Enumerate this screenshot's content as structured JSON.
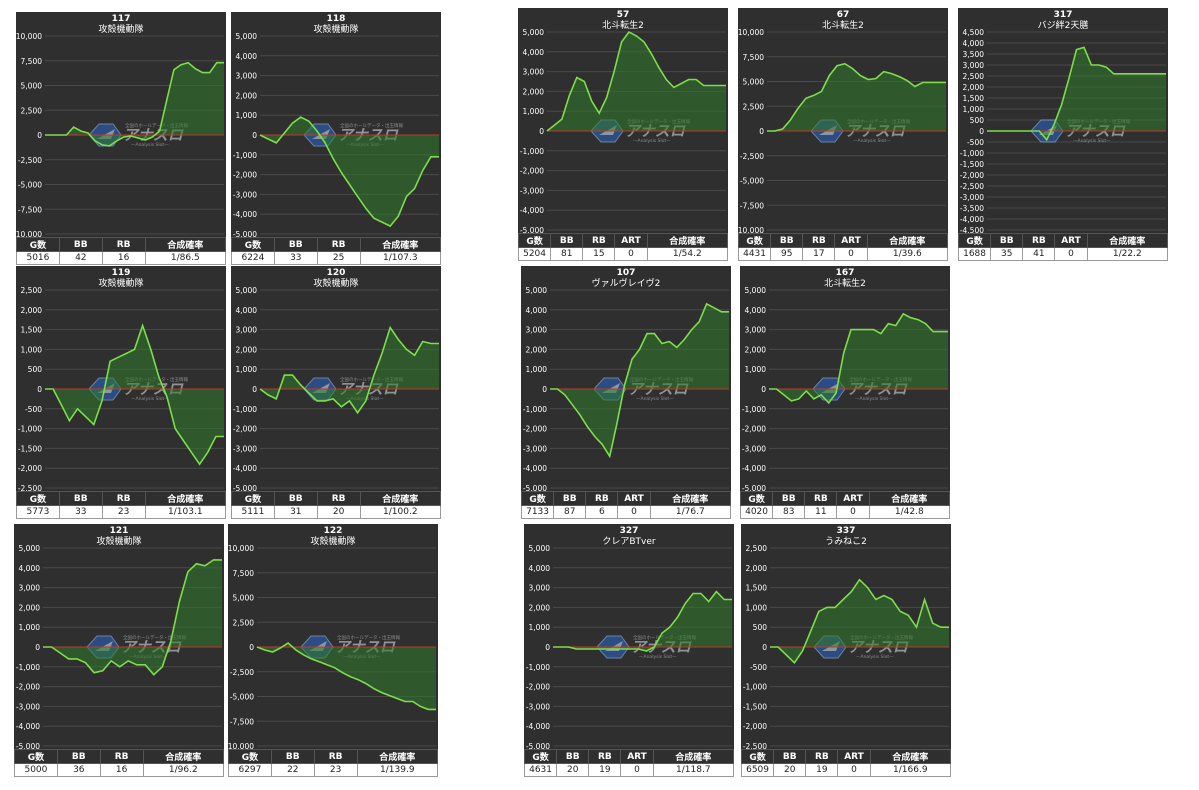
{
  "colors": {
    "background": "#2f2f2f",
    "line": "#7dde4a",
    "fill": "#2f7a2a",
    "zero": "#c0392b",
    "grid": "#4a4a4a",
    "text": "#ffffff"
  },
  "icons": {
    "watermark": "anaslo-logo-watermark"
  },
  "watermark": {
    "title": "アナスロ",
    "subtitle": "—Analysis Slot—",
    "caption": "全国のホールデータ・出玉情報"
  },
  "chart_data": [
    {
      "id": "117",
      "type": "area",
      "title": "117",
      "subtitle": "攻殻機動隊",
      "yticks": [
        10000,
        7500,
        5000,
        2500,
        0,
        -2500,
        -5000,
        -7500,
        -10000
      ],
      "ytick_labels": [
        "10,000",
        "7,500",
        "5,000",
        "2,500",
        "0",
        "-2,500",
        "-5,000",
        "-7,500",
        "-10,000"
      ],
      "ylim": [
        -10000,
        10000
      ],
      "values": [
        0,
        0,
        0,
        0,
        800,
        400,
        200,
        -600,
        -1000,
        -1100,
        -600,
        -200,
        -100,
        -300,
        -500,
        -200,
        400,
        3500,
        6600,
        7100,
        7300,
        6700,
        6300,
        6300,
        7300,
        7300
      ],
      "headers": [
        "G数",
        "BB",
        "RB",
        "合成確率"
      ],
      "stats": [
        "5016",
        "42",
        "16",
        "1/86.5"
      ]
    },
    {
      "id": "118",
      "type": "area",
      "title": "118",
      "subtitle": "攻殻機動隊",
      "yticks": [
        5000,
        4000,
        3000,
        2000,
        1000,
        0,
        -1000,
        -2000,
        -3000,
        -4000,
        -5000
      ],
      "ytick_labels": [
        "5,000",
        "4,000",
        "3,000",
        "2,000",
        "1,000",
        "0",
        "-1,000",
        "-2,000",
        "-3,000",
        "-4,000",
        "-5,000"
      ],
      "ylim": [
        -5000,
        5000
      ],
      "values": [
        0,
        -200,
        -400,
        100,
        600,
        900,
        700,
        200,
        -400,
        -1200,
        -1900,
        -2500,
        -3100,
        -3700,
        -4200,
        -4400,
        -4600,
        -4100,
        -3100,
        -2700,
        -1800,
        -1100,
        -1100
      ],
      "headers": [
        "G数",
        "BB",
        "RB",
        "合成確率"
      ],
      "stats": [
        "6224",
        "33",
        "25",
        "1/107.3"
      ]
    },
    {
      "id": "57",
      "type": "area",
      "title": "57",
      "subtitle": "北斗転生2",
      "yticks": [
        5000,
        4000,
        3000,
        2000,
        1000,
        0,
        -1000,
        -2000,
        -3000,
        -4000,
        -5000
      ],
      "ytick_labels": [
        "5,000",
        "4,000",
        "3,000",
        "2,000",
        "1,000",
        "0",
        "-1,000",
        "-2,000",
        "-3,000",
        "-4,000",
        "-5,000"
      ],
      "ylim": [
        -5000,
        5000
      ],
      "values": [
        0,
        300,
        600,
        1800,
        2700,
        2500,
        1500,
        900,
        1700,
        3000,
        4500,
        5000,
        4800,
        4500,
        3900,
        3200,
        2600,
        2200,
        2400,
        2600,
        2600,
        2300,
        2300,
        2300,
        2300
      ],
      "headers": [
        "G数",
        "BB",
        "RB",
        "ART",
        "合成確率"
      ],
      "stats": [
        "5204",
        "81",
        "15",
        "0",
        "1/54.2"
      ]
    },
    {
      "id": "67",
      "type": "area",
      "title": "67",
      "subtitle": "北斗転生2",
      "yticks": [
        10000,
        7500,
        5000,
        2500,
        0,
        -2500,
        -5000,
        -7500,
        -10000
      ],
      "ytick_labels": [
        "10,000",
        "7,500",
        "5,000",
        "2,500",
        "0",
        "-2,500",
        "-5,000",
        "-7,500",
        "-10,000"
      ],
      "ylim": [
        -10000,
        10000
      ],
      "values": [
        0,
        0,
        200,
        1100,
        2300,
        3300,
        3600,
        4000,
        5600,
        6600,
        6800,
        6300,
        5600,
        5200,
        5300,
        6000,
        5800,
        5500,
        5100,
        4500,
        4900,
        4900,
        4900,
        4900
      ],
      "headers": [
        "G数",
        "BB",
        "RB",
        "ART",
        "合成確率"
      ],
      "stats": [
        "4431",
        "95",
        "17",
        "0",
        "1/39.6"
      ]
    },
    {
      "id": "317",
      "type": "area",
      "title": "317",
      "subtitle": "バジ絆2天膳",
      "yticks": [
        4500,
        4000,
        3500,
        3000,
        2500,
        2000,
        1500,
        1000,
        500,
        0,
        -500,
        -1000,
        -1500,
        -2000,
        -2500,
        -3000,
        -3500,
        -4000,
        -4500
      ],
      "ytick_labels": [
        "4,500",
        "4,000",
        "3,500",
        "3,000",
        "2,500",
        "2,000",
        "1,500",
        "1,000",
        "500",
        "0",
        "-500",
        "-1,000",
        "-1,500",
        "-2,000",
        "-2,500",
        "-3,000",
        "-3,500",
        "-4,000",
        "-4,500"
      ],
      "ylim": [
        -4500,
        4500
      ],
      "values": [
        0,
        0,
        0,
        0,
        0,
        0,
        0,
        0,
        -400,
        300,
        1200,
        2400,
        3700,
        3800,
        3000,
        3000,
        2900,
        2600,
        2600,
        2600,
        2600,
        2600,
        2600,
        2600,
        2600
      ],
      "headers": [
        "G数",
        "BB",
        "RB",
        "ART",
        "合成確率"
      ],
      "stats": [
        "1688",
        "35",
        "41",
        "0",
        "1/22.2"
      ]
    },
    {
      "id": "119",
      "type": "area",
      "title": "119",
      "subtitle": "攻殻機動隊",
      "yticks": [
        2500,
        2000,
        1500,
        1000,
        500,
        0,
        -500,
        -1000,
        -1500,
        -2000,
        -2500
      ],
      "ytick_labels": [
        "2,500",
        "2,000",
        "1,500",
        "1,000",
        "500",
        "0",
        "-500",
        "-1,000",
        "-1,500",
        "-2,000",
        "-2,500"
      ],
      "ylim": [
        -2500,
        2500
      ],
      "values": [
        0,
        0,
        -400,
        -800,
        -500,
        -700,
        -900,
        -300,
        700,
        800,
        900,
        1000,
        1600,
        1000,
        300,
        -200,
        -1000,
        -1300,
        -1600,
        -1900,
        -1600,
        -1200,
        -1200
      ],
      "headers": [
        "G数",
        "BB",
        "RB",
        "合成確率"
      ],
      "stats": [
        "5773",
        "33",
        "23",
        "1/103.1"
      ]
    },
    {
      "id": "120",
      "type": "area",
      "title": "120",
      "subtitle": "攻殻機動隊",
      "yticks": [
        5000,
        4000,
        3000,
        2000,
        1000,
        0,
        -1000,
        -2000,
        -3000,
        -4000,
        -5000
      ],
      "ytick_labels": [
        "5,000",
        "4,000",
        "3,000",
        "2,000",
        "1,000",
        "0",
        "-1,000",
        "-2,000",
        "-3,000",
        "-4,000",
        "-5,000"
      ],
      "ylim": [
        -5000,
        5000
      ],
      "values": [
        0,
        -300,
        -500,
        700,
        700,
        200,
        -200,
        -600,
        -600,
        -500,
        -900,
        -600,
        -1200,
        -600,
        700,
        1800,
        3100,
        2500,
        2000,
        1700,
        2400,
        2300,
        2300
      ],
      "headers": [
        "G数",
        "BB",
        "RB",
        "合成確率"
      ],
      "stats": [
        "5111",
        "31",
        "20",
        "1/100.2"
      ]
    },
    {
      "id": "107",
      "type": "area",
      "title": "107",
      "subtitle": "ヴァルヴレイヴ2",
      "yticks": [
        5000,
        4000,
        3000,
        2000,
        1000,
        0,
        -1000,
        -2000,
        -3000,
        -4000,
        -5000
      ],
      "ytick_labels": [
        "5,000",
        "4,000",
        "3,000",
        "2,000",
        "1,000",
        "0",
        "-1,000",
        "-2,000",
        "-3,000",
        "-4,000",
        "-5,000"
      ],
      "ylim": [
        -5000,
        5000
      ],
      "values": [
        0,
        0,
        -300,
        -800,
        -1300,
        -1900,
        -2400,
        -2800,
        -3400,
        -1700,
        200,
        1500,
        2000,
        2800,
        2800,
        2300,
        2400,
        2100,
        2500,
        3000,
        3400,
        4300,
        4100,
        3900,
        3900
      ],
      "headers": [
        "G数",
        "BB",
        "RB",
        "ART",
        "合成確率"
      ],
      "stats": [
        "7133",
        "87",
        "6",
        "0",
        "1/76.7"
      ]
    },
    {
      "id": "167",
      "type": "area",
      "title": "167",
      "subtitle": "北斗転生2",
      "yticks": [
        5000,
        4000,
        3000,
        2000,
        1000,
        0,
        -1000,
        -2000,
        -3000,
        -4000,
        -5000
      ],
      "ytick_labels": [
        "5,000",
        "4,000",
        "3,000",
        "2,000",
        "1,000",
        "0",
        "-1,000",
        "-2,000",
        "-3,000",
        "-4,000",
        "-5,000"
      ],
      "ylim": [
        -5000,
        5000
      ],
      "values": [
        0,
        0,
        -300,
        -600,
        -500,
        -100,
        -500,
        -300,
        -700,
        -200,
        1800,
        3000,
        3000,
        3000,
        3000,
        2800,
        3300,
        3200,
        3800,
        3600,
        3500,
        3300,
        2900,
        2900,
        2900
      ],
      "headers": [
        "G数",
        "BB",
        "RB",
        "ART",
        "合成確率"
      ],
      "stats": [
        "4020",
        "83",
        "11",
        "0",
        "1/42.8"
      ]
    },
    {
      "id": "121",
      "type": "area",
      "title": "121",
      "subtitle": "攻殻機動隊",
      "yticks": [
        5000,
        4000,
        3000,
        2000,
        1000,
        0,
        -1000,
        -2000,
        -3000,
        -4000,
        -5000
      ],
      "ytick_labels": [
        "5,000",
        "4,000",
        "3,000",
        "2,000",
        "1,000",
        "0",
        "-1,000",
        "-2,000",
        "-3,000",
        "-4,000",
        "-5,000"
      ],
      "ylim": [
        -5000,
        5000
      ],
      "values": [
        0,
        0,
        -300,
        -600,
        -600,
        -800,
        -1300,
        -1200,
        -700,
        -1000,
        -700,
        -900,
        -900,
        -1400,
        -1000,
        300,
        2300,
        3800,
        4200,
        4100,
        4400,
        4400
      ],
      "headers": [
        "G数",
        "BB",
        "RB",
        "合成確率"
      ],
      "stats": [
        "5000",
        "36",
        "16",
        "1/96.2"
      ]
    },
    {
      "id": "122",
      "type": "area",
      "title": "122",
      "subtitle": "攻殻機動隊",
      "yticks": [
        10000,
        7500,
        5000,
        2500,
        0,
        -2500,
        -5000,
        -7500,
        -10000
      ],
      "ytick_labels": [
        "10,000",
        "7,500",
        "5,000",
        "2,500",
        "0",
        "-2,500",
        "-5,000",
        "-7,500",
        "-10,000"
      ],
      "ylim": [
        -10000,
        10000
      ],
      "values": [
        0,
        -300,
        -500,
        -100,
        400,
        -300,
        -800,
        -1200,
        -1500,
        -1800,
        -2100,
        -2600,
        -3000,
        -3300,
        -3700,
        -4200,
        -4600,
        -4900,
        -5200,
        -5500,
        -5500,
        -6000,
        -6300,
        -6300
      ],
      "headers": [
        "G数",
        "BB",
        "RB",
        "合成確率"
      ],
      "stats": [
        "6297",
        "22",
        "23",
        "1/139.9"
      ]
    },
    {
      "id": "327",
      "type": "area",
      "title": "327",
      "subtitle": "クレアBTver",
      "yticks": [
        5000,
        4000,
        3000,
        2000,
        1000,
        0,
        -1000,
        -2000,
        -3000,
        -4000,
        -5000
      ],
      "ytick_labels": [
        "5,000",
        "4,000",
        "3,000",
        "2,000",
        "1,000",
        "0",
        "-1,000",
        "-2,000",
        "-3,000",
        "-4,000",
        "-5,000"
      ],
      "ylim": [
        -5000,
        5000
      ],
      "values": [
        0,
        0,
        0,
        -100,
        -100,
        -100,
        -100,
        -100,
        -100,
        -100,
        -100,
        -100,
        -200,
        0,
        700,
        1000,
        1500,
        2200,
        2700,
        2700,
        2300,
        2800,
        2400,
        2400
      ],
      "headers": [
        "G数",
        "BB",
        "RB",
        "ART",
        "合成確率"
      ],
      "stats": [
        "4631",
        "20",
        "19",
        "0",
        "1/118.7"
      ]
    },
    {
      "id": "337",
      "type": "area",
      "title": "337",
      "subtitle": "うみねこ2",
      "yticks": [
        2500,
        2000,
        1500,
        1000,
        500,
        0,
        -500,
        -1000,
        -1500,
        -2000,
        -2500
      ],
      "ytick_labels": [
        "2,500",
        "2,000",
        "1,500",
        "1,000",
        "500",
        "0",
        "-500",
        "-1,000",
        "-1,500",
        "-2,000",
        "-2,500"
      ],
      "ylim": [
        -2500,
        2500
      ],
      "values": [
        0,
        0,
        -200,
        -400,
        -100,
        400,
        900,
        1000,
        1000,
        1200,
        1400,
        1700,
        1500,
        1200,
        1300,
        1200,
        900,
        800,
        500,
        1200,
        600,
        500,
        500
      ],
      "headers": [
        "G数",
        "BB",
        "RB",
        "ART",
        "合成確率"
      ],
      "stats": [
        "6509",
        "20",
        "19",
        "0",
        "1/166.9"
      ]
    }
  ]
}
